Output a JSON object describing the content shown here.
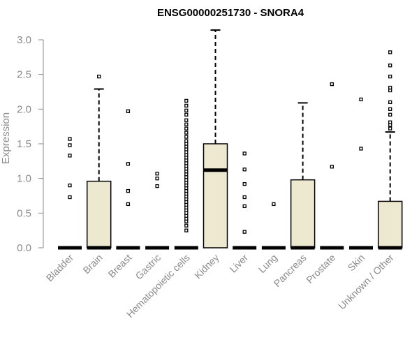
{
  "chart_data": {
    "type": "boxplot",
    "title": "ENSG00000251730 - SNORA4",
    "xlabel": "",
    "ylabel": "Expression",
    "ylim": [
      0,
      3.0
    ],
    "yticks": [
      "0.0",
      "0.5",
      "1.0",
      "1.5",
      "2.0",
      "2.5",
      "3.0"
    ],
    "box_color": "#ede8d0",
    "categories": [
      "Bladder",
      "Brain",
      "Breast",
      "Gastric",
      "Hematopoietic cells",
      "Kidney",
      "Liver",
      "Lung",
      "Pancreas",
      "Prostate",
      "Skin",
      "Unknown / Other"
    ],
    "series": [
      {
        "name": "Bladder",
        "q1": 0,
        "median": 0,
        "q3": 0,
        "whisker_low": 0,
        "whisker_high": 0,
        "outliers": [
          0.73,
          0.9,
          1.33,
          1.48,
          1.57
        ]
      },
      {
        "name": "Brain",
        "q1": 0,
        "median": 0,
        "q3": 0.96,
        "whisker_low": 0,
        "whisker_high": 2.29,
        "outliers": [
          2.47
        ]
      },
      {
        "name": "Breast",
        "q1": 0,
        "median": 0,
        "q3": 0,
        "whisker_low": 0,
        "whisker_high": 0,
        "outliers": [
          0.63,
          0.82,
          1.21,
          1.97
        ]
      },
      {
        "name": "Gastric",
        "q1": 0,
        "median": 0,
        "q3": 0,
        "whisker_low": 0,
        "whisker_high": 0,
        "outliers": [
          0.89,
          1.0,
          1.07
        ]
      },
      {
        "name": "Hematopoietic cells",
        "q1": 0,
        "median": 0,
        "q3": 0,
        "whisker_low": 0,
        "whisker_high": 0,
        "outliers": [
          0.25,
          0.32,
          0.38,
          0.42,
          0.46,
          0.5,
          0.54,
          0.58,
          0.62,
          0.66,
          0.7,
          0.74,
          0.78,
          0.82,
          0.86,
          0.9,
          0.94,
          0.98,
          1.02,
          1.06,
          1.1,
          1.14,
          1.18,
          1.22,
          1.26,
          1.3,
          1.34,
          1.38,
          1.42,
          1.46,
          1.5,
          1.54,
          1.6,
          1.66,
          1.72,
          1.78,
          1.84,
          1.92,
          1.98,
          2.05,
          2.12
        ]
      },
      {
        "name": "Kidney",
        "q1": 0,
        "median": 1.12,
        "q3": 1.5,
        "whisker_low": 0,
        "whisker_high": 3.14,
        "outliers": []
      },
      {
        "name": "Liver",
        "q1": 0,
        "median": 0,
        "q3": 0,
        "whisker_low": 0,
        "whisker_high": 0,
        "outliers": [
          0.23,
          0.6,
          0.73,
          0.92,
          1.13,
          1.36
        ]
      },
      {
        "name": "Lung",
        "q1": 0,
        "median": 0,
        "q3": 0,
        "whisker_low": 0,
        "whisker_high": 0,
        "outliers": [
          0.63
        ]
      },
      {
        "name": "Pancreas",
        "q1": 0,
        "median": 0,
        "q3": 0.98,
        "whisker_low": 0,
        "whisker_high": 2.09,
        "outliers": []
      },
      {
        "name": "Prostate",
        "q1": 0,
        "median": 0,
        "q3": 0,
        "whisker_low": 0,
        "whisker_high": 0,
        "outliers": [
          1.17,
          2.36
        ]
      },
      {
        "name": "Skin",
        "q1": 0,
        "median": 0,
        "q3": 0,
        "whisker_low": 0,
        "whisker_high": 0,
        "outliers": [
          1.43,
          2.14
        ]
      },
      {
        "name": "Unknown / Other",
        "q1": 0,
        "median": 0,
        "q3": 0.67,
        "whisker_low": 0,
        "whisker_high": 1.67,
        "outliers": [
          1.72,
          1.77,
          1.81,
          1.92,
          2.0,
          2.1,
          2.27,
          2.31,
          2.47,
          2.63,
          2.82
        ]
      }
    ]
  }
}
